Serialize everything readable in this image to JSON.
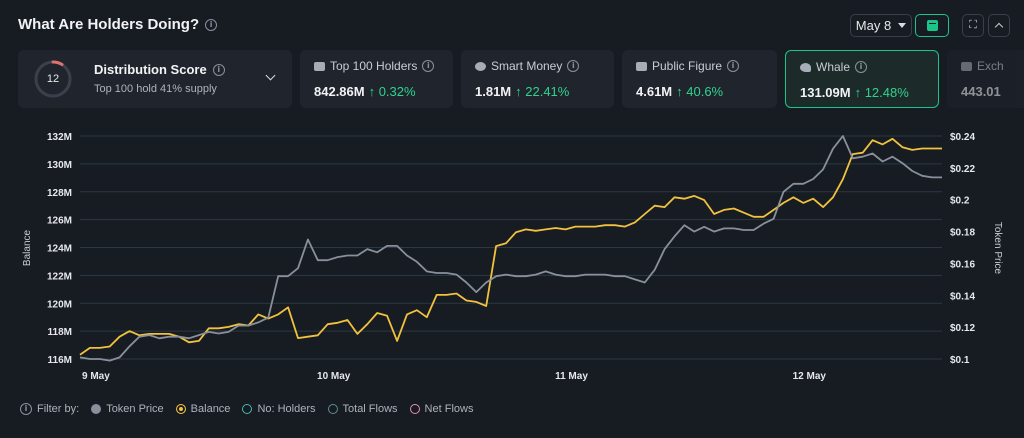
{
  "header": {
    "title": "What Are Holders Doing?",
    "date_label": "May 8"
  },
  "distribution": {
    "score": "12",
    "title": "Distribution Score",
    "subtitle": "Top 100 hold 41% supply"
  },
  "cards": [
    {
      "label": "Top 100 Holders",
      "value": "842.86M",
      "change": "↑ 0.32%",
      "icon": "users-icon"
    },
    {
      "label": "Smart Money",
      "value": "1.81M",
      "change": "↑ 22.41%",
      "icon": "smart-money-icon"
    },
    {
      "label": "Public Figure",
      "value": "4.61M",
      "change": "↑ 40.6%",
      "icon": "public-figure-icon"
    },
    {
      "label": "Whale",
      "value": "131.09M",
      "change": "↑ 12.48%",
      "icon": "whale-icon"
    },
    {
      "label": "Exch",
      "value": "443.01",
      "change": "",
      "icon": "exchange-icon"
    }
  ],
  "colors": {
    "balance": "#f2c23e",
    "token_price": "#8a909b",
    "accent": "#1bc58a",
    "grid": "#2a3a44",
    "holders": "#4ab6b0",
    "total_flows": "#5f8f8a",
    "net_flows": "#e58fb4"
  },
  "legend": {
    "filter_label": "Filter by:",
    "items": [
      "Token Price",
      "Balance",
      "No: Holders",
      "Total Flows",
      "Net Flows"
    ]
  },
  "chart_data": {
    "type": "line",
    "xlabel": "",
    "ylabel": "Balance",
    "y2label": "Token Price",
    "ylim": [
      116,
      132
    ],
    "y2lim": [
      0.1,
      0.24
    ],
    "yticks": [
      "116M",
      "118M",
      "120M",
      "122M",
      "124M",
      "126M",
      "128M",
      "130M",
      "132M"
    ],
    "y2ticks": [
      "$0.1",
      "$0.12",
      "$0.14",
      "$0.16",
      "$0.18",
      "$0.2",
      "$0.22",
      "$0.24"
    ],
    "xticks": [
      {
        "label": "9 May",
        "index": 1
      },
      {
        "label": "10 May",
        "index": 25
      },
      {
        "label": "11 May",
        "index": 49
      },
      {
        "label": "12 May",
        "index": 73
      }
    ],
    "grid": true,
    "series": [
      {
        "name": "Balance",
        "axis": "left",
        "values": [
          116.3,
          116.8,
          116.8,
          116.9,
          117.6,
          118.0,
          117.7,
          117.8,
          117.8,
          117.8,
          117.6,
          117.2,
          117.3,
          118.2,
          118.2,
          118.3,
          118.5,
          118.4,
          119.2,
          118.9,
          119.2,
          119.7,
          117.5,
          117.6,
          117.7,
          118.5,
          118.6,
          118.8,
          117.8,
          118.5,
          119.3,
          119.1,
          117.3,
          119.2,
          119.5,
          119.0,
          120.6,
          120.6,
          120.7,
          120.2,
          120.1,
          119.8,
          124.1,
          124.3,
          125.1,
          125.3,
          125.2,
          125.3,
          125.4,
          125.3,
          125.5,
          125.5,
          125.5,
          125.6,
          125.6,
          125.5,
          125.8,
          126.4,
          127.0,
          126.9,
          127.6,
          127.5,
          127.7,
          127.4,
          126.4,
          126.7,
          126.8,
          126.5,
          126.2,
          126.2,
          126.7,
          127.2,
          127.6,
          127.2,
          127.5,
          126.9,
          127.6,
          128.9,
          130.7,
          130.8,
          131.7,
          131.4,
          131.8,
          131.2,
          131.0,
          131.1,
          131.1,
          131.1
        ]
      },
      {
        "name": "Token Price",
        "axis": "right",
        "values": [
          0.101,
          0.1,
          0.1,
          0.099,
          0.101,
          0.108,
          0.114,
          0.115,
          0.113,
          0.114,
          0.114,
          0.113,
          0.115,
          0.117,
          0.116,
          0.117,
          0.121,
          0.121,
          0.123,
          0.126,
          0.152,
          0.152,
          0.157,
          0.175,
          0.162,
          0.162,
          0.164,
          0.165,
          0.165,
          0.169,
          0.167,
          0.171,
          0.171,
          0.165,
          0.161,
          0.155,
          0.154,
          0.154,
          0.153,
          0.148,
          0.142,
          0.148,
          0.152,
          0.153,
          0.152,
          0.152,
          0.153,
          0.155,
          0.153,
          0.152,
          0.152,
          0.153,
          0.153,
          0.153,
          0.152,
          0.152,
          0.15,
          0.148,
          0.156,
          0.169,
          0.177,
          0.184,
          0.18,
          0.183,
          0.18,
          0.182,
          0.182,
          0.181,
          0.181,
          0.185,
          0.188,
          0.205,
          0.21,
          0.21,
          0.213,
          0.219,
          0.232,
          0.24,
          0.226,
          0.227,
          0.229,
          0.224,
          0.227,
          0.223,
          0.218,
          0.215,
          0.214,
          0.214
        ]
      }
    ]
  }
}
